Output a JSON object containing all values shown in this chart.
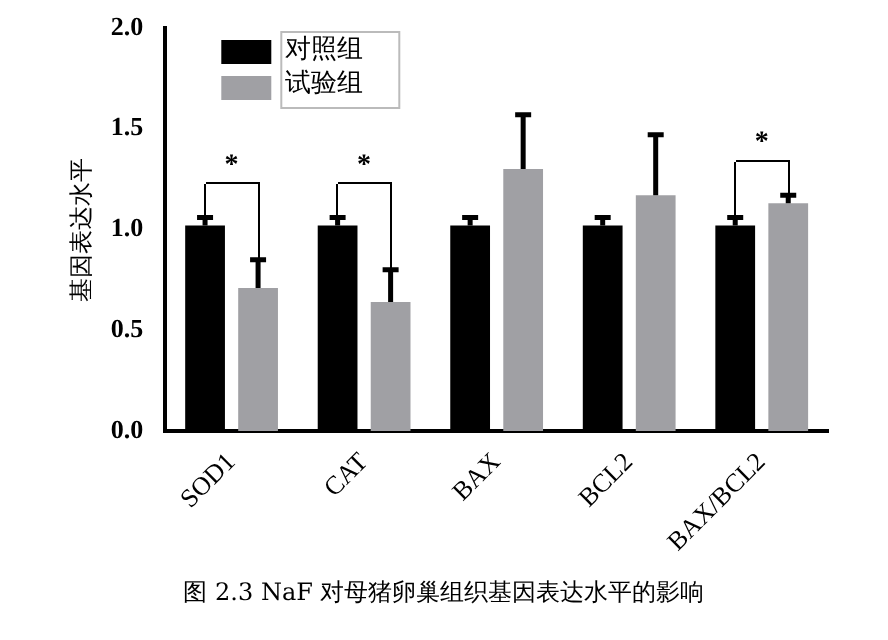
{
  "chart_data": {
    "type": "bar",
    "ylabel": "基因表达水平",
    "categories": [
      "SOD1",
      "CAT",
      "BAX",
      "BCL2",
      "BAX/BCL2"
    ],
    "series": [
      {
        "name": "对照组",
        "color": "#000000",
        "values": [
          1.02,
          1.02,
          1.02,
          1.02,
          1.02
        ],
        "errors": [
          [
            1.02,
            1.06
          ],
          [
            1.02,
            1.06
          ],
          [
            1.02,
            1.06
          ],
          [
            1.02,
            1.06
          ],
          [
            1.02,
            1.06
          ]
        ]
      },
      {
        "name": "试验组",
        "color": "#a0a0a4",
        "values": [
          0.71,
          0.64,
          1.3,
          1.17,
          1.13
        ],
        "errors": [
          [
            0.71,
            0.85
          ],
          [
            0.64,
            0.8
          ],
          [
            1.3,
            1.57
          ],
          [
            1.17,
            1.47
          ],
          [
            1.13,
            1.17
          ]
        ]
      }
    ],
    "ylim": [
      0,
      2
    ],
    "yticks": [
      {
        "value": 0,
        "label": "0.0"
      },
      {
        "value": 0.5,
        "label": "0.5"
      },
      {
        "value": 1,
        "label": "1.0"
      },
      {
        "value": 1.5,
        "label": "1.5"
      },
      {
        "value": 2,
        "label": "2.0"
      }
    ],
    "grid": false,
    "legend": "top left",
    "annotations": [
      {
        "text": "*",
        "x": "SOD1",
        "y": 1.06
      },
      {
        "text": "*",
        "x": "CAT",
        "y": 1.06
      },
      {
        "text": "*",
        "x": "BAX/BCL2",
        "y": 1.06
      },
      "图 2.3 NaF 对母猪卵巢组织基因表达水平的影响"
    ]
  }
}
